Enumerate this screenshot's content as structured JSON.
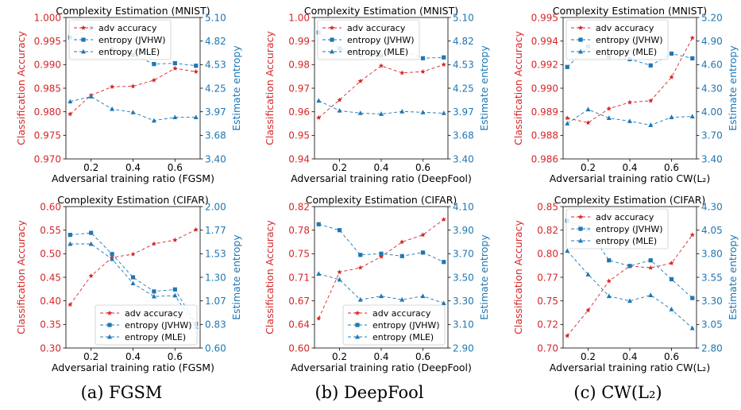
{
  "colors": {
    "accuracy": "#d62728",
    "entropy": "#1f77b4"
  },
  "captions": [
    "(a) FGSM",
    "(b) DeepFool",
    "(c) CW(L₂)"
  ],
  "chart_data": [
    {
      "type": "line",
      "title": "Complexity Estimation (MNIST)",
      "xlabel": "Adversarial training ratio (FGSM)",
      "ylabel": "Classification Accuracy",
      "y2label": "Estimate entropy",
      "x": [
        0.1,
        0.2,
        0.3,
        0.4,
        0.5,
        0.6,
        0.7
      ],
      "xlim": [
        0.08,
        0.72
      ],
      "xticks": [
        "0.2",
        "0.4",
        "0.6"
      ],
      "ylim": [
        0.97,
        1.0
      ],
      "yticks": [
        "0.970",
        "0.975",
        "0.980",
        "0.985",
        "0.990",
        "0.995",
        "1.000"
      ],
      "y2lim": [
        3.4,
        5.1
      ],
      "y2ticks": [
        "3.40",
        "3.68",
        "3.97",
        "4.25",
        "4.53",
        "4.82",
        "5.10"
      ],
      "legend": "top-left",
      "series": [
        {
          "name": "adv accuracy",
          "axis": "left",
          "marker": "star",
          "values": [
            0.9795,
            0.9835,
            0.9853,
            0.9854,
            0.9867,
            0.9892,
            0.9885
          ]
        },
        {
          "name": "entropy (JVHW)",
          "axis": "right",
          "marker": "square",
          "values": [
            4.86,
            4.97,
            4.72,
            4.65,
            4.54,
            4.55,
            4.52
          ]
        },
        {
          "name": "entropy (MLE)",
          "axis": "right",
          "marker": "triangle",
          "values": [
            4.09,
            4.15,
            4.0,
            3.96,
            3.86,
            3.9,
            3.9
          ]
        }
      ]
    },
    {
      "type": "line",
      "title": "Complexity Estimation (MNIST)",
      "xlabel": "Adversarial training ratio (DeepFool)",
      "ylabel": "Classification Accuracy",
      "y2label": "Estimate entropy",
      "x": [
        0.1,
        0.2,
        0.3,
        0.4,
        0.5,
        0.6,
        0.7
      ],
      "xlim": [
        0.08,
        0.72
      ],
      "xticks": [
        "0.2",
        "0.4",
        "0.6"
      ],
      "ylim": [
        0.94,
        1.0
      ],
      "yticks": [
        "0.94",
        "0.95",
        "0.96",
        "0.97",
        "0.98",
        "0.99",
        "1.00"
      ],
      "y2lim": [
        3.4,
        5.1
      ],
      "y2ticks": [
        "3.40",
        "3.68",
        "3.97",
        "4.25",
        "4.53",
        "4.82",
        "5.10"
      ],
      "legend": "top-left",
      "series": [
        {
          "name": "adv accuracy",
          "axis": "left",
          "marker": "star",
          "values": [
            0.9575,
            0.965,
            0.973,
            0.9795,
            0.9765,
            0.977,
            0.98
          ]
        },
        {
          "name": "entropy (JVHW)",
          "axis": "right",
          "marker": "square",
          "values": [
            4.92,
            4.73,
            4.65,
            4.64,
            4.71,
            4.61,
            4.62
          ]
        },
        {
          "name": "entropy (MLE)",
          "axis": "right",
          "marker": "triangle",
          "values": [
            4.1,
            3.98,
            3.95,
            3.94,
            3.97,
            3.96,
            3.95
          ]
        }
      ]
    },
    {
      "type": "line",
      "title": "Complexity Estimation (MNIST)",
      "xlabel": "Adversarial training ratio CW(L₂)",
      "ylabel": "Classification Accuracy",
      "y2label": "Estimate entropy",
      "x": [
        0.1,
        0.2,
        0.3,
        0.4,
        0.5,
        0.6,
        0.7
      ],
      "xlim": [
        0.08,
        0.72
      ],
      "xticks": [
        "0.2",
        "0.4",
        "0.6"
      ],
      "ylim": [
        0.986,
        0.995
      ],
      "yticks": [
        "0.986",
        "0.988",
        "0.989",
        "0.990",
        "0.992",
        "0.994",
        "0.995"
      ],
      "y2lim": [
        3.4,
        5.2
      ],
      "y2ticks": [
        "3.40",
        "3.70",
        "4.00",
        "4.30",
        "4.60",
        "4.90",
        "5.20"
      ],
      "legend": "top-left",
      "series": [
        {
          "name": "adv accuracy",
          "axis": "left",
          "marker": "star",
          "values": [
            0.9886,
            0.9883,
            0.9892,
            0.9896,
            0.9897,
            0.9912,
            0.9937
          ]
        },
        {
          "name": "entropy (JVHW)",
          "axis": "right",
          "marker": "square",
          "values": [
            4.57,
            4.83,
            4.7,
            4.67,
            4.59,
            4.74,
            4.68
          ]
        },
        {
          "name": "entropy (MLE)",
          "axis": "right",
          "marker": "triangle",
          "values": [
            3.85,
            4.03,
            3.92,
            3.88,
            3.83,
            3.93,
            3.94
          ]
        }
      ]
    },
    {
      "type": "line",
      "title": "Complexity Estimation (CIFAR)",
      "xlabel": "Adversarial training ratio (FGSM)",
      "ylabel": "Classification Accuracy",
      "y2label": "Estimate entropy",
      "x": [
        0.1,
        0.2,
        0.3,
        0.4,
        0.5,
        0.6,
        0.7
      ],
      "xlim": [
        0.08,
        0.72
      ],
      "xticks": [
        "0.2",
        "0.4",
        "0.6"
      ],
      "ylim": [
        0.3,
        0.6
      ],
      "yticks": [
        "0.30",
        "0.35",
        "0.40",
        "0.45",
        "0.50",
        "0.55",
        "0.60"
      ],
      "y2lim": [
        0.6,
        2.0
      ],
      "y2ticks": [
        "0.60",
        "0.83",
        "1.07",
        "1.30",
        "1.53",
        "1.77",
        "2.00"
      ],
      "legend": "bottom-right",
      "series": [
        {
          "name": "adv accuracy",
          "axis": "left",
          "marker": "star",
          "values": [
            0.392,
            0.453,
            0.492,
            0.499,
            0.521,
            0.529,
            0.551
          ]
        },
        {
          "name": "entropy (JVHW)",
          "axis": "right",
          "marker": "square",
          "values": [
            1.72,
            1.74,
            1.53,
            1.3,
            1.16,
            1.18,
            0.84
          ]
        },
        {
          "name": "entropy (MLE)",
          "axis": "right",
          "marker": "triangle",
          "values": [
            1.63,
            1.63,
            1.48,
            1.24,
            1.11,
            1.12,
            0.81
          ]
        }
      ]
    },
    {
      "type": "line",
      "title": "Complexity Estimation (CIFAR)",
      "xlabel": "Adversarial training ratio (DeepFool)",
      "ylabel": "Classification Accuracy",
      "y2label": "Estimate entropy",
      "x": [
        0.1,
        0.2,
        0.3,
        0.4,
        0.5,
        0.6,
        0.7
      ],
      "xlim": [
        0.08,
        0.72
      ],
      "xticks": [
        "0.2",
        "0.4",
        "0.6"
      ],
      "ylim": [
        0.6,
        0.82
      ],
      "yticks": [
        "0.60",
        "0.64",
        "0.67",
        "0.71",
        "0.75",
        "0.78",
        "0.82"
      ],
      "y2lim": [
        2.9,
        4.1
      ],
      "y2ticks": [
        "2.90",
        "3.10",
        "3.30",
        "3.50",
        "3.70",
        "3.90",
        "4.10"
      ],
      "legend": "bottom-right",
      "series": [
        {
          "name": "adv accuracy",
          "axis": "left",
          "marker": "star",
          "values": [
            0.646,
            0.718,
            0.725,
            0.742,
            0.765,
            0.776,
            0.8
          ]
        },
        {
          "name": "entropy (JVHW)",
          "axis": "right",
          "marker": "square",
          "values": [
            3.95,
            3.9,
            3.69,
            3.7,
            3.68,
            3.71,
            3.63
          ]
        },
        {
          "name": "entropy (MLE)",
          "axis": "right",
          "marker": "triangle",
          "values": [
            3.53,
            3.48,
            3.31,
            3.34,
            3.31,
            3.34,
            3.28
          ]
        }
      ]
    },
    {
      "type": "line",
      "title": "Complexity Estimation (CIFAR)",
      "xlabel": "Adversarial training ratio CW(L₂)",
      "ylabel": "Classification Accuracy",
      "y2label": "Estimate entropy",
      "x": [
        0.1,
        0.2,
        0.3,
        0.4,
        0.5,
        0.6,
        0.7
      ],
      "xlim": [
        0.08,
        0.72
      ],
      "xticks": [
        "0.2",
        "0.4",
        "0.6"
      ],
      "ylim": [
        0.7,
        0.85
      ],
      "yticks": [
        "0.70",
        "0.72",
        "0.75",
        "0.77",
        "0.80",
        "0.82",
        "0.85"
      ],
      "y2lim": [
        2.8,
        4.3
      ],
      "y2ticks": [
        "2.80",
        "3.05",
        "3.30",
        "3.55",
        "3.80",
        "4.05",
        "4.30"
      ],
      "legend": "top-left",
      "series": [
        {
          "name": "adv accuracy",
          "axis": "left",
          "marker": "star",
          "values": [
            0.713,
            0.74,
            0.771,
            0.787,
            0.785,
            0.79,
            0.82
          ]
        },
        {
          "name": "entropy (JVHW)",
          "axis": "right",
          "marker": "square",
          "values": [
            4.15,
            4.06,
            3.73,
            3.67,
            3.73,
            3.53,
            3.33
          ]
        },
        {
          "name": "entropy (MLE)",
          "axis": "right",
          "marker": "triangle",
          "values": [
            3.83,
            3.58,
            3.35,
            3.3,
            3.36,
            3.21,
            3.01
          ]
        }
      ]
    }
  ]
}
